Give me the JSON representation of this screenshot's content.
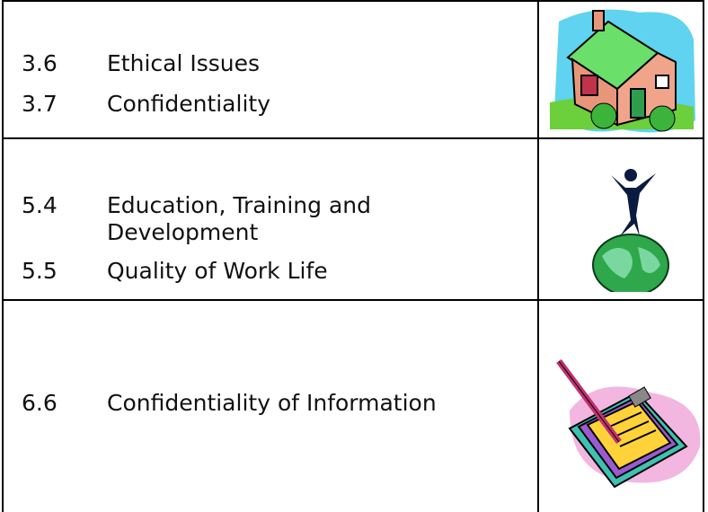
{
  "table": {
    "rows": [
      {
        "items": [
          {
            "number": "3.6",
            "text": "Ethical Issues"
          },
          {
            "number": "3.7",
            "text": "Confidentiality"
          }
        ]
      },
      {
        "items": [
          {
            "number": "5.4",
            "text": "Education, Training and Development"
          },
          {
            "number": "5.5",
            "text": "Quality of Work Life"
          }
        ]
      },
      {
        "items": [
          {
            "number": "6.6",
            "text": "Confidentiality of Information"
          }
        ]
      }
    ]
  }
}
